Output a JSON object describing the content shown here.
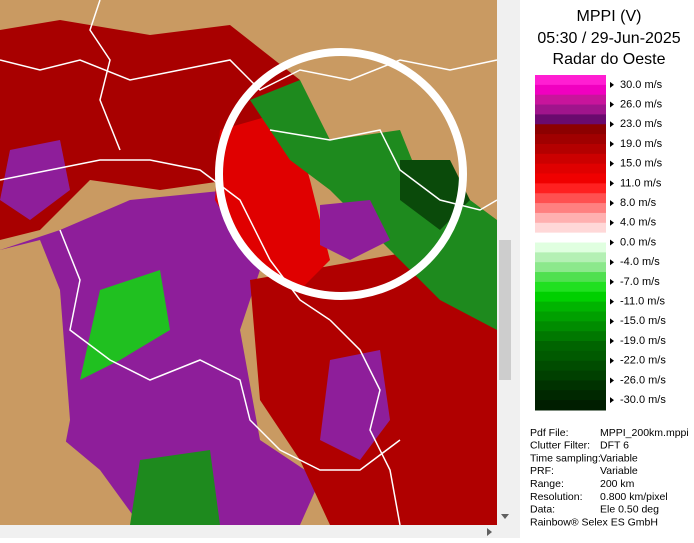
{
  "legend": {
    "title": "MPPI (V)",
    "subtitle": "05:30 / 29-Jun-2025",
    "radar": "Radar do Oeste",
    "entries": [
      {
        "label": "30.0 m/s",
        "colors": [
          "#ff1ed2",
          "#f000c0"
        ]
      },
      {
        "label": "26.0 m/s",
        "colors": [
          "#c8149c",
          "#a0148c"
        ]
      },
      {
        "label": "23.0 m/s",
        "colors": [
          "#6a0a6e",
          "#8c0000"
        ]
      },
      {
        "label": "19.0 m/s",
        "colors": [
          "#a00000",
          "#b40000"
        ]
      },
      {
        "label": "15.0 m/s",
        "colors": [
          "#cc0000",
          "#e00000"
        ]
      },
      {
        "label": "11.0 m/s",
        "colors": [
          "#f00000",
          "#ff2020"
        ]
      },
      {
        "label": "8.0 m/s",
        "colors": [
          "#ff5050",
          "#ff8080"
        ]
      },
      {
        "label": "4.0 m/s",
        "colors": [
          "#ffb0b0",
          "#ffd8d8"
        ]
      },
      {
        "label": "0.0 m/s",
        "colors": [
          "#ffffff",
          "#e0ffe0"
        ]
      },
      {
        "label": "-4.0 m/s",
        "colors": [
          "#b4f0b4",
          "#8ce88c"
        ]
      },
      {
        "label": "-7.0 m/s",
        "colors": [
          "#50e050",
          "#20e020"
        ]
      },
      {
        "label": "-11.0 m/s",
        "colors": [
          "#00d000",
          "#00b400"
        ]
      },
      {
        "label": "-15.0 m/s",
        "colors": [
          "#00a000",
          "#008c00"
        ]
      },
      {
        "label": "-19.0 m/s",
        "colors": [
          "#007800",
          "#006400"
        ]
      },
      {
        "label": "-22.0 m/s",
        "colors": [
          "#005a00",
          "#004c00"
        ]
      },
      {
        "label": "-26.0 m/s",
        "colors": [
          "#004000",
          "#003200"
        ]
      },
      {
        "label": "-30.0 m/s",
        "colors": [
          "#002800",
          "#001e00"
        ]
      }
    ]
  },
  "info": {
    "rows": [
      [
        "Pdf File:",
        "MPPI_200km.mppi"
      ],
      [
        "Clutter Filter:",
        "DFT 6"
      ],
      [
        "Time sampling:",
        "Variable"
      ],
      [
        "PRF:",
        "Variable"
      ],
      [
        "Range:",
        "200 km"
      ],
      [
        "Resolution:",
        "0.800 km/pixel"
      ],
      [
        "Data:",
        "Ele 0.50 deg"
      ]
    ],
    "footer": "Rainbow® Selex ES GmbH"
  }
}
